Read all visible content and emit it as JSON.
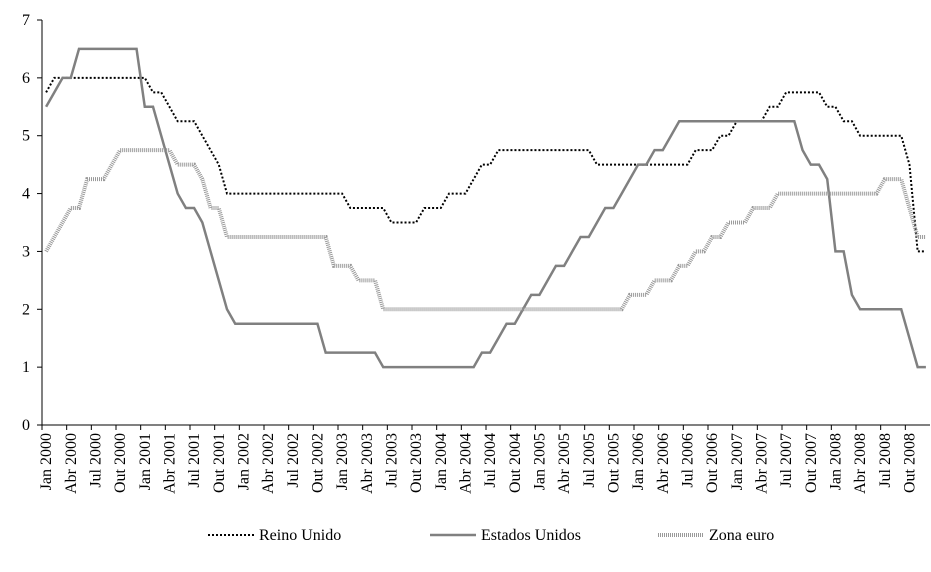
{
  "chart_data": {
    "type": "line",
    "categories": [
      "Jan 2000",
      null,
      null,
      "Abr 2000",
      null,
      null,
      "Jul 2000",
      null,
      null,
      "Out 2000",
      null,
      null,
      "Jan 2001",
      null,
      null,
      "Abr 2001",
      null,
      null,
      "Jul 2001",
      null,
      null,
      "Out 2001",
      null,
      null,
      "Jan 2002",
      null,
      null,
      "Abr 2002",
      null,
      null,
      "Jul 2002",
      null,
      null,
      "Out 2002",
      null,
      null,
      "Jan 2003",
      null,
      null,
      "Abr 2003",
      null,
      null,
      "Jul 2003",
      null,
      null,
      "Out 2003",
      null,
      null,
      "Jan 2004",
      null,
      null,
      "Abr 2004",
      null,
      null,
      "Jul 2004",
      null,
      null,
      "Out 2004",
      null,
      null,
      "Jan 2005",
      null,
      null,
      "Abr 2005",
      null,
      null,
      "Jul 2005",
      null,
      null,
      "Out 2005",
      null,
      null,
      "Jan 2006",
      null,
      null,
      "Abr 2006",
      null,
      null,
      "Jul 2006",
      null,
      null,
      "Out 2006",
      null,
      null,
      "Jan 2007",
      null,
      null,
      "Abr 2007",
      null,
      null,
      "Jul 2007",
      null,
      null,
      "Out 2007",
      null,
      null,
      "Jan 2008",
      null,
      null,
      "Abr 2008",
      null,
      null,
      "Jul 2008",
      null,
      null,
      "Out 2008",
      null,
      null
    ],
    "series": [
      {
        "name": "Reino Unido",
        "color": "#000000",
        "values": [
          5.75,
          6,
          6,
          6,
          6,
          6,
          6,
          6,
          6,
          6,
          6,
          6,
          6,
          5.75,
          5.75,
          5.5,
          5.25,
          5.25,
          5.25,
          5,
          4.75,
          4.5,
          4,
          4,
          4,
          4,
          4,
          4,
          4,
          4,
          4,
          4,
          4,
          4,
          4,
          4,
          4,
          3.75,
          3.75,
          3.75,
          3.75,
          3.75,
          3.5,
          3.5,
          3.5,
          3.5,
          3.75,
          3.75,
          3.75,
          4,
          4,
          4,
          4.25,
          4.5,
          4.5,
          4.75,
          4.75,
          4.75,
          4.75,
          4.75,
          4.75,
          4.75,
          4.75,
          4.75,
          4.75,
          4.75,
          4.75,
          4.5,
          4.5,
          4.5,
          4.5,
          4.5,
          4.5,
          4.5,
          4.5,
          4.5,
          4.5,
          4.5,
          4.5,
          4.75,
          4.75,
          4.75,
          5,
          5,
          5.25,
          5.25,
          5.25,
          5.25,
          5.5,
          5.5,
          5.75,
          5.75,
          5.75,
          5.75,
          5.75,
          5.5,
          5.5,
          5.25,
          5.25,
          5,
          5,
          5,
          5,
          5,
          5,
          4.5,
          3,
          3
        ]
      },
      {
        "name": "Estados Unidos",
        "color": "#808080",
        "values": [
          5.5,
          5.75,
          6,
          6,
          6.5,
          6.5,
          6.5,
          6.5,
          6.5,
          6.5,
          6.5,
          6.5,
          5.5,
          5.5,
          5,
          4.5,
          4,
          3.75,
          3.75,
          3.5,
          3,
          2.5,
          2,
          1.75,
          1.75,
          1.75,
          1.75,
          1.75,
          1.75,
          1.75,
          1.75,
          1.75,
          1.75,
          1.75,
          1.25,
          1.25,
          1.25,
          1.25,
          1.25,
          1.25,
          1.25,
          1,
          1,
          1,
          1,
          1,
          1,
          1,
          1,
          1,
          1,
          1,
          1,
          1.25,
          1.25,
          1.5,
          1.75,
          1.75,
          2,
          2.25,
          2.25,
          2.5,
          2.75,
          2.75,
          3,
          3.25,
          3.25,
          3.5,
          3.75,
          3.75,
          4,
          4.25,
          4.5,
          4.5,
          4.75,
          4.75,
          5,
          5.25,
          5.25,
          5.25,
          5.25,
          5.25,
          5.25,
          5.25,
          5.25,
          5.25,
          5.25,
          5.25,
          5.25,
          5.25,
          5.25,
          5.25,
          4.75,
          4.5,
          4.5,
          4.25,
          3,
          3,
          2.25,
          2,
          2,
          2,
          2,
          2,
          2,
          1.5,
          1,
          1
        ]
      },
      {
        "name": "Zona euro",
        "color": "#999999",
        "values": [
          3,
          3.25,
          3.5,
          3.75,
          3.75,
          4.25,
          4.25,
          4.25,
          4.5,
          4.75,
          4.75,
          4.75,
          4.75,
          4.75,
          4.75,
          4.75,
          4.5,
          4.5,
          4.5,
          4.25,
          3.75,
          3.75,
          3.25,
          3.25,
          3.25,
          3.25,
          3.25,
          3.25,
          3.25,
          3.25,
          3.25,
          3.25,
          3.25,
          3.25,
          3.25,
          2.75,
          2.75,
          2.75,
          2.5,
          2.5,
          2.5,
          2,
          2,
          2,
          2,
          2,
          2,
          2,
          2,
          2,
          2,
          2,
          2,
          2,
          2,
          2,
          2,
          2,
          2,
          2,
          2,
          2,
          2,
          2,
          2,
          2,
          2,
          2,
          2,
          2,
          2,
          2.25,
          2.25,
          2.25,
          2.5,
          2.5,
          2.5,
          2.75,
          2.75,
          3,
          3,
          3.25,
          3.25,
          3.5,
          3.5,
          3.5,
          3.75,
          3.75,
          3.75,
          4,
          4,
          4,
          4,
          4,
          4,
          4,
          4,
          4,
          4,
          4,
          4,
          4,
          4.25,
          4.25,
          4.25,
          3.75,
          3.25,
          3.25
        ]
      }
    ],
    "ylim": [
      0,
      7
    ],
    "yticks": [
      0,
      1,
      2,
      3,
      4,
      5,
      6,
      7
    ],
    "grid": false,
    "legend": "bottom"
  }
}
